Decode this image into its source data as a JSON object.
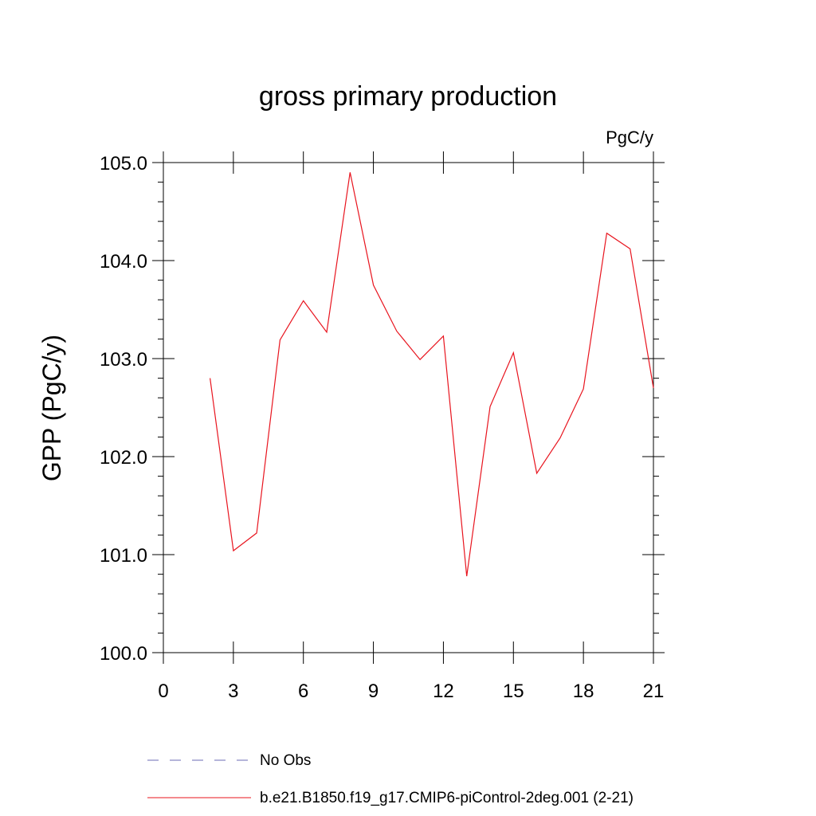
{
  "chart_data": {
    "type": "line",
    "title": "gross primary production",
    "units_label": "PgC/y",
    "ylabel": "GPP  (PgC/y)",
    "xlabel": "",
    "xlim": [
      0,
      21
    ],
    "ylim": [
      100.0,
      105.0
    ],
    "x_ticks": [
      0,
      3,
      6,
      9,
      12,
      15,
      18,
      21
    ],
    "y_ticks": [
      100.0,
      101.0,
      102.0,
      103.0,
      104.0,
      105.0
    ],
    "y_tick_labels": [
      "100.0",
      "101.0",
      "102.0",
      "103.0",
      "104.0",
      "105.0"
    ],
    "grid": false,
    "legend_position": "bottom",
    "series": [
      {
        "name": "b.e21.B1850.f19_g17.CMIP6-piControl-2deg.001 (2-21)",
        "color": "#e8141e",
        "style": "solid",
        "x": [
          2,
          3,
          4,
          5,
          6,
          7,
          8,
          9,
          10,
          11,
          12,
          13,
          14,
          15,
          16,
          17,
          18,
          19,
          20,
          21
        ],
        "y": [
          102.8,
          101.04,
          101.22,
          103.19,
          103.59,
          103.27,
          104.9,
          103.75,
          103.28,
          102.99,
          103.23,
          100.78,
          102.51,
          103.06,
          101.83,
          102.19,
          102.69,
          104.28,
          104.12,
          102.7
        ]
      }
    ],
    "legend": [
      {
        "label": "No Obs",
        "color": "#6b6bb5",
        "style": "dashed"
      },
      {
        "label": "b.e21.B1850.f19_g17.CMIP6-piControl-2deg.001 (2-21)",
        "color": "#e8141e",
        "style": "solid"
      }
    ]
  }
}
